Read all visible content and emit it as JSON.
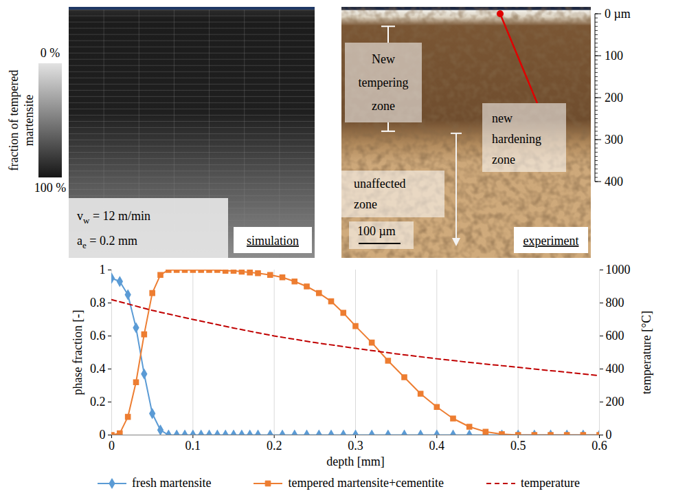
{
  "simulation_panel": {
    "colorbar": {
      "title": "fraction of tempered martensite",
      "range": [
        0,
        100
      ],
      "ticks": [
        {
          "value": 0,
          "label": "0 %"
        },
        {
          "value": 100,
          "label": "100 %"
        }
      ]
    },
    "parameters": [
      {
        "symbol": "v",
        "subscript": "w",
        "text": " = 12 m/min"
      },
      {
        "symbol": "a",
        "subscript": "e",
        "text": " = 0.2 mm"
      }
    ],
    "tag": "simulation"
  },
  "experiment_panel": {
    "tag": "experiment",
    "depth_scale": {
      "range": [
        0,
        400
      ],
      "ticks": [
        {
          "value": 0,
          "label": "0 µm"
        },
        100,
        200,
        300,
        400
      ]
    },
    "zones": [
      {
        "label": "New tempering zone",
        "from": 30,
        "to": 280
      },
      {
        "label": "new hardening zone",
        "from": 0
      },
      {
        "label": "unaffected zone",
        "from": 285
      }
    ],
    "scale_bar": {
      "length": 100,
      "label": "100 µm"
    }
  },
  "chart_data": {
    "type": "line",
    "xlabel": "depth [mm]",
    "ylabel": "phase fraction [-]",
    "y2label": "temperature [°C]",
    "x": [
      0,
      0.01,
      0.02,
      0.03,
      0.04,
      0.05,
      0.06,
      0.07,
      0.08,
      0.09,
      0.1,
      0.11,
      0.12,
      0.13,
      0.14,
      0.15,
      0.16,
      0.17,
      0.18,
      0.195,
      0.21,
      0.225,
      0.24,
      0.255,
      0.27,
      0.285,
      0.3,
      0.32,
      0.34,
      0.36,
      0.38,
      0.4,
      0.42,
      0.44,
      0.46,
      0.48,
      0.5,
      0.52,
      0.54,
      0.56,
      0.58,
      0.6
    ],
    "xlim": [
      0,
      0.6
    ],
    "xticks": [
      0,
      0.1,
      0.2,
      0.3,
      0.4,
      0.5,
      0.6
    ],
    "ylim": [
      0,
      1
    ],
    "yticks": [
      0,
      0.2,
      0.4,
      0.6,
      0.8,
      1
    ],
    "y2lim": [
      0,
      1000
    ],
    "y2ticks": [
      0,
      200,
      400,
      600,
      800,
      1000
    ],
    "grid": "x",
    "legend": "bottom",
    "series": [
      {
        "name": "fresh martensite",
        "color": "#5b9bd5",
        "marker": "diamond",
        "line_style": "solid",
        "values": [
          0.95,
          0.93,
          0.85,
          0.65,
          0.37,
          0.13,
          0.03,
          0,
          0,
          0,
          0,
          0,
          0,
          0,
          0,
          0,
          0,
          0,
          0,
          0,
          0,
          0,
          0,
          0,
          0,
          0,
          0,
          0,
          0,
          0,
          0,
          0,
          0,
          0,
          0,
          0,
          0,
          0,
          0,
          0,
          0,
          0
        ]
      },
      {
        "name": "tempered martensite+cementite",
        "color": "#ed7d31",
        "marker": "square",
        "line_style": "solid",
        "values": [
          0,
          0.01,
          0.11,
          0.32,
          0.61,
          0.86,
          0.97,
          1,
          1,
          1,
          1,
          1,
          1,
          1,
          0.995,
          0.995,
          0.99,
          0.985,
          0.98,
          0.97,
          0.955,
          0.93,
          0.9,
          0.86,
          0.81,
          0.74,
          0.66,
          0.56,
          0.45,
          0.35,
          0.25,
          0.17,
          0.1,
          0.05,
          0.02,
          0.005,
          0,
          0,
          0,
          0,
          0,
          0
        ]
      },
      {
        "name": "temperature",
        "axis": "y2",
        "color": "#c00000",
        "marker": "none",
        "line_style": "dashed",
        "x": [
          0,
          0.05,
          0.1,
          0.15,
          0.2,
          0.25,
          0.3,
          0.35,
          0.4,
          0.45,
          0.5,
          0.55,
          0.6
        ],
        "values": [
          820,
          755,
          700,
          648,
          600,
          560,
          525,
          492,
          462,
          435,
          410,
          385,
          360
        ]
      }
    ]
  }
}
